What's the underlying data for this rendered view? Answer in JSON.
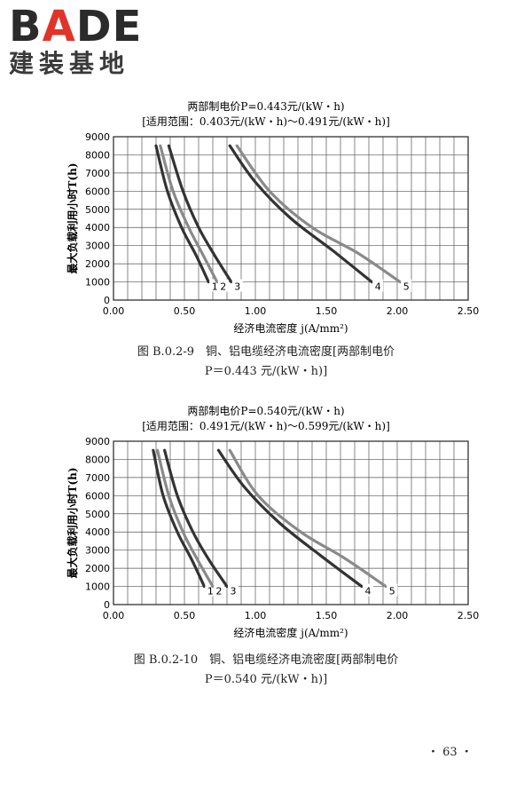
{
  "logo": {
    "brand_left": "B",
    "brand_accent": "A",
    "brand_right": "DE",
    "subtitle": "建装基地"
  },
  "chart_data": [
    {
      "type": "line",
      "title_line1": "两部制电价P=0.443元/(kW・h)",
      "title_line2": "[适用范围：0.403元/(kW・h)～0.491元/(kW・h)]",
      "xlabel": "经济电流密度 j(A/mm²)",
      "ylabel": "最大负载利用小时T(h)",
      "xlim": [
        0,
        2.5
      ],
      "ylim": [
        0,
        9000
      ],
      "xticks": [
        "0.00",
        "0.50",
        "1.00",
        "1.50",
        "2.00",
        "2.50"
      ],
      "yticks": [
        "0",
        "1000",
        "2000",
        "3000",
        "4000",
        "5000",
        "6000",
        "7000",
        "8000",
        "9000"
      ],
      "series": [
        {
          "name": "1",
          "color": "#333333",
          "points": [
            [
              0.3,
              8500
            ],
            [
              0.38,
              6000
            ],
            [
              0.48,
              4000
            ],
            [
              0.58,
              2500
            ],
            [
              0.67,
              1000
            ]
          ]
        },
        {
          "name": "2",
          "color": "#8a8a8a",
          "points": [
            [
              0.33,
              8500
            ],
            [
              0.42,
              6000
            ],
            [
              0.53,
              4000
            ],
            [
              0.63,
              2500
            ],
            [
              0.73,
              1000
            ]
          ]
        },
        {
          "name": "3",
          "color": "#333333",
          "points": [
            [
              0.39,
              8500
            ],
            [
              0.49,
              6000
            ],
            [
              0.6,
              4000
            ],
            [
              0.71,
              2500
            ],
            [
              0.83,
              1000
            ]
          ]
        },
        {
          "name": "4",
          "color": "#333333",
          "points": [
            [
              0.82,
              8500
            ],
            [
              1.0,
              6500
            ],
            [
              1.25,
              4500
            ],
            [
              1.55,
              2700
            ],
            [
              1.82,
              1000
            ]
          ]
        },
        {
          "name": "5",
          "color": "#8a8a8a",
          "points": [
            [
              0.87,
              8500
            ],
            [
              1.1,
              6000
            ],
            [
              1.4,
              4000
            ],
            [
              1.72,
              2600
            ],
            [
              2.02,
              1000
            ]
          ]
        }
      ]
    },
    {
      "type": "line",
      "title_line1": "两部制电价P=0.540元/(kW・h)",
      "title_line2": "[适用范围：0.491元/(kW・h)～0.599元/(kW・h)]",
      "xlabel": "经济电流密度 j(A/mm²)",
      "ylabel": "最大负载利用小时T(h)",
      "xlim": [
        0,
        2.5
      ],
      "ylim": [
        0,
        9000
      ],
      "xticks": [
        "0.00",
        "0.50",
        "1.00",
        "1.50",
        "2.00",
        "2.50"
      ],
      "yticks": [
        "0",
        "1000",
        "2000",
        "3000",
        "4000",
        "5000",
        "6000",
        "7000",
        "8000",
        "9000"
      ],
      "series": [
        {
          "name": "1",
          "color": "#333333",
          "points": [
            [
              0.28,
              8500
            ],
            [
              0.35,
              6000
            ],
            [
              0.45,
              4000
            ],
            [
              0.55,
              2500
            ],
            [
              0.64,
              1000
            ]
          ]
        },
        {
          "name": "2",
          "color": "#8a8a8a",
          "points": [
            [
              0.31,
              8500
            ],
            [
              0.39,
              6000
            ],
            [
              0.49,
              4000
            ],
            [
              0.59,
              2500
            ],
            [
              0.7,
              1000
            ]
          ]
        },
        {
          "name": "3",
          "color": "#333333",
          "points": [
            [
              0.36,
              8500
            ],
            [
              0.45,
              6000
            ],
            [
              0.56,
              4000
            ],
            [
              0.67,
              2500
            ],
            [
              0.8,
              1000
            ]
          ]
        },
        {
          "name": "4",
          "color": "#333333",
          "points": [
            [
              0.74,
              8500
            ],
            [
              0.92,
              6500
            ],
            [
              1.17,
              4500
            ],
            [
              1.46,
              2700
            ],
            [
              1.75,
              1000
            ]
          ]
        },
        {
          "name": "5",
          "color": "#8a8a8a",
          "points": [
            [
              0.82,
              8500
            ],
            [
              1.02,
              6000
            ],
            [
              1.32,
              4000
            ],
            [
              1.62,
              2600
            ],
            [
              1.92,
              1000
            ]
          ]
        }
      ]
    }
  ],
  "captions": [
    {
      "line1": "图 B.0.2-9　铜、铝电缆经济电流密度[两部制电价",
      "line2": "P＝0.443 元/(kW・h)]"
    },
    {
      "line1": "图 B.0.2-10　铜、铝电缆经济电流密度[两部制电价",
      "line2": "P＝0.540 元/(kW・h)]"
    }
  ],
  "page_number": "・ 63 ・"
}
